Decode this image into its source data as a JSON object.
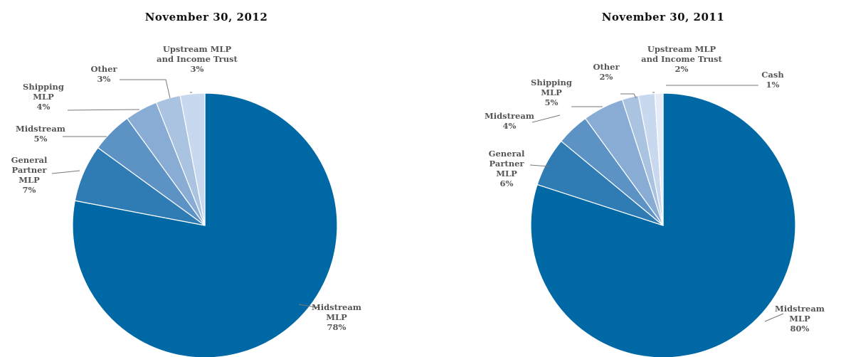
{
  "chart_data": [
    {
      "type": "pie",
      "title": "November 30, 2012",
      "slices": [
        {
          "label": [
            "Midstream",
            "MLP",
            "78%"
          ],
          "value": 78,
          "color": "#0068a5"
        },
        {
          "label": [
            "General",
            "Partner",
            "MLP",
            "7%"
          ],
          "value": 7,
          "color": "#2f7cb5"
        },
        {
          "label": [
            "Midstream",
            "5%"
          ],
          "value": 5,
          "color": "#5c93c4"
        },
        {
          "label": [
            "Shipping",
            "MLP",
            "4%"
          ],
          "value": 4,
          "color": "#88acd4"
        },
        {
          "label": [
            "Other",
            "3%"
          ],
          "value": 3,
          "color": "#aac3e1"
        },
        {
          "label": [
            "Upstream MLP",
            "and Income Trust",
            "3%"
          ],
          "value": 3,
          "color": "#c8d8ee"
        }
      ]
    },
    {
      "type": "pie",
      "title": "November 30, 2011",
      "slices": [
        {
          "label": [
            "Midstream",
            "MLP",
            "80%"
          ],
          "value": 80,
          "color": "#0068a5"
        },
        {
          "label": [
            "General",
            "Partner",
            "MLP",
            "6%"
          ],
          "value": 6,
          "color": "#2f7cb5"
        },
        {
          "label": [
            "Midstream",
            "4%"
          ],
          "value": 4,
          "color": "#5c93c4"
        },
        {
          "label": [
            "Shipping",
            "MLP",
            "5%"
          ],
          "value": 5,
          "color": "#88acd4"
        },
        {
          "label": [
            "Other",
            "2%"
          ],
          "value": 2,
          "color": "#aac3e1"
        },
        {
          "label": [
            "Upstream MLP",
            "and Income Trust",
            "2%"
          ],
          "value": 2,
          "color": "#c8d8ee"
        },
        {
          "label": [
            "Cash",
            "1%"
          ],
          "value": 1,
          "color": "#e3ecf7"
        }
      ]
    }
  ]
}
